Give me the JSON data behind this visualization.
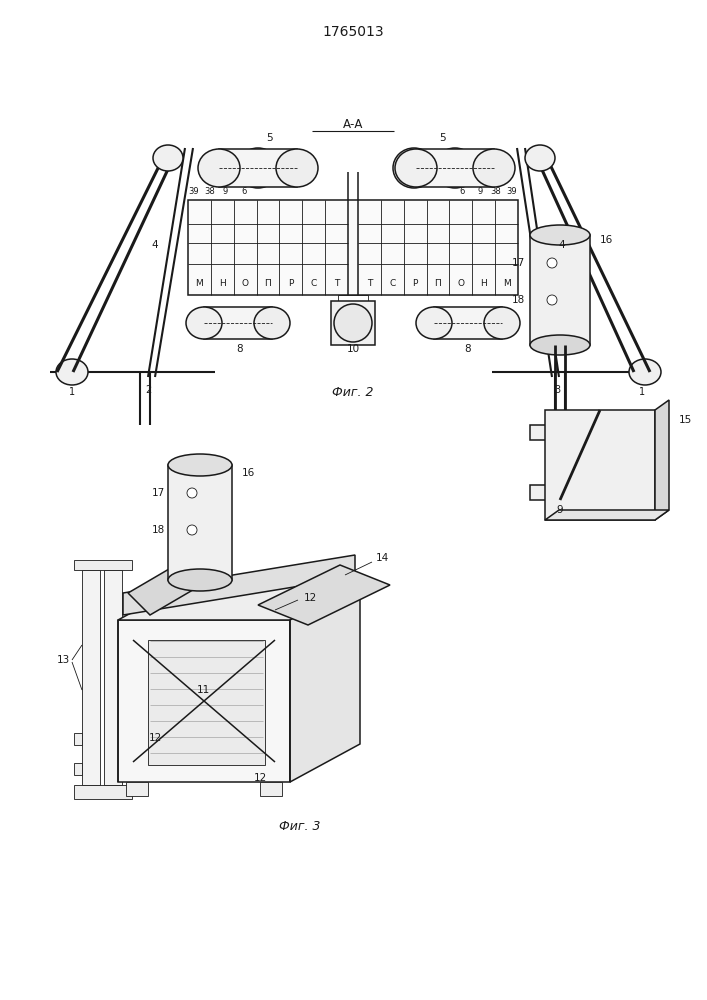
{
  "title": "1765013",
  "fig2_label": "Фиг. 2",
  "fig3_label": "Фиг. 3",
  "aa_label": "А-А",
  "bg_color": "#ffffff",
  "line_color": "#1a1a1a",
  "lw": 1.1,
  "tlw": 0.6
}
